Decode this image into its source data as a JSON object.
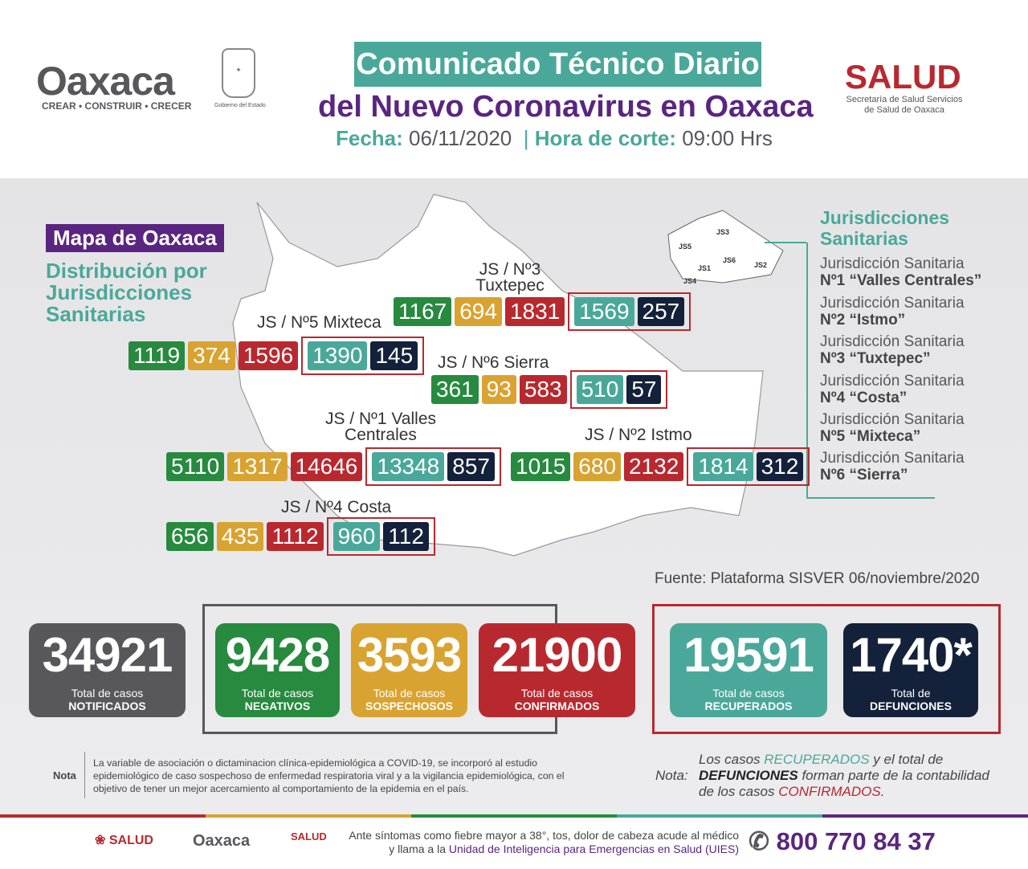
{
  "header": {
    "logo_oaxaca": "Oaxaca",
    "logo_slogan": "CREAR • CONSTRUIR • CRECER",
    "gobierno": "Gobierno del Estado",
    "title_line1": "Comunicado Técnico Diario",
    "title_line2": "del Nuevo Coronavirus en Oaxaca",
    "fecha_label": "Fecha:",
    "fecha": "06/11/2020",
    "hora_label": "Hora de corte:",
    "hora": "09:00 Hrs",
    "salud": "SALUD",
    "salud_sub": "Secretaría de Salud Servicios de Salud de Oaxaca"
  },
  "map": {
    "title": "Mapa de Oaxaca",
    "subtitle": "Distribución por Jurisdicciones Sanitarias",
    "mini_labels": [
      "JS1",
      "JS2",
      "JS3",
      "JS4",
      "JS5",
      "JS6"
    ],
    "regions": [
      {
        "label": "JS / Nº3 Tuxtepec",
        "values": [
          1167,
          694,
          1831,
          1569,
          257
        ]
      },
      {
        "label": "JS / Nº5 Mixteca",
        "values": [
          1119,
          374,
          1596,
          1390,
          145
        ]
      },
      {
        "label": "JS / Nº6 Sierra",
        "values": [
          361,
          93,
          583,
          510,
          57
        ]
      },
      {
        "label": "JS / Nº1 Valles Centrales",
        "values": [
          5110,
          1317,
          14646,
          13348,
          857
        ]
      },
      {
        "label": "JS / Nº2 Istmo",
        "values": [
          1015,
          680,
          2132,
          1814,
          312
        ]
      },
      {
        "label": "JS / Nº4 Costa",
        "values": [
          656,
          435,
          1112,
          960,
          112
        ]
      }
    ]
  },
  "jurisdicciones": {
    "title": "Jurisdicciones Sanitarias",
    "items": [
      {
        "line1": "Jurisdicción Sanitaria",
        "line2": "Nº1 “Valles Centrales”"
      },
      {
        "line1": "Jurisdicción Sanitaria",
        "line2": "Nº2 “Istmo”"
      },
      {
        "line1": "Jurisdicción Sanitaria",
        "line2": "Nº3 “Tuxtepec”"
      },
      {
        "line1": "Jurisdicción Sanitaria",
        "line2": "Nº4 “Costa”"
      },
      {
        "line1": "Jurisdicción Sanitaria",
        "line2": "Nº5 “Mixteca”"
      },
      {
        "line1": "Jurisdicción Sanitaria",
        "line2": "Nº6 “Sierra”"
      }
    ]
  },
  "fuente": "Fuente: Plataforma SISVER 06/noviembre/2020",
  "totals": [
    {
      "value": "34921",
      "l1": "Total de casos",
      "l2": "NOTIFICADOS",
      "color": "#58575c"
    },
    {
      "value": "9428",
      "l1": "Total de casos",
      "l2": "NEGATIVOS",
      "color": "#278a3f"
    },
    {
      "value": "3593",
      "l1": "Total de casos",
      "l2": "SOSPECHOSOS",
      "color": "#d9a331"
    },
    {
      "value": "21900",
      "l1": "Total de casos",
      "l2": "CONFIRMADOS",
      "color": "#b8292f"
    },
    {
      "value": "19591",
      "l1": "Total de casos",
      "l2": "RECUPERADOS",
      "color": "#4aa89a"
    },
    {
      "value": "1740*",
      "l1": "Total de",
      "l2": "DEFUNCIONES",
      "color": "#14213a"
    }
  ],
  "nota": {
    "label": "Nota",
    "text": "La variable de asociación o dictaminacion clínica-epidemiológica a COVID-19, se incorporó al estudio epidemiológico de caso sospechoso de enfermedad respiratoria viral y a la vigilancia epidemiológica, con el objetivo de tener un mejor acercamiento al comportamiento de la epidemia en el país."
  },
  "nota2": {
    "label": "Nota:",
    "p1": "Los casos ",
    "recuperados": "RECUPERADOS",
    "p2": " y el total de ",
    "defunciones": "DEFUNCIONES",
    "p3": " forman parte de la contabilidad de los casos ",
    "confirmados": "CONFIRMADOS",
    "p4": "."
  },
  "footer": {
    "salud": "SALUD",
    "oaxaca": "Oaxaca",
    "salud2": "SALUD",
    "text1": "Ante síntomas como fiebre mayor a 38°, tos, dolor de cabeza acude al médico",
    "text2a": "y llama a la ",
    "text2b": "Unidad de Inteligencia para Emergencias en Salud (UIES)",
    "phone": "800 770 84 37"
  }
}
